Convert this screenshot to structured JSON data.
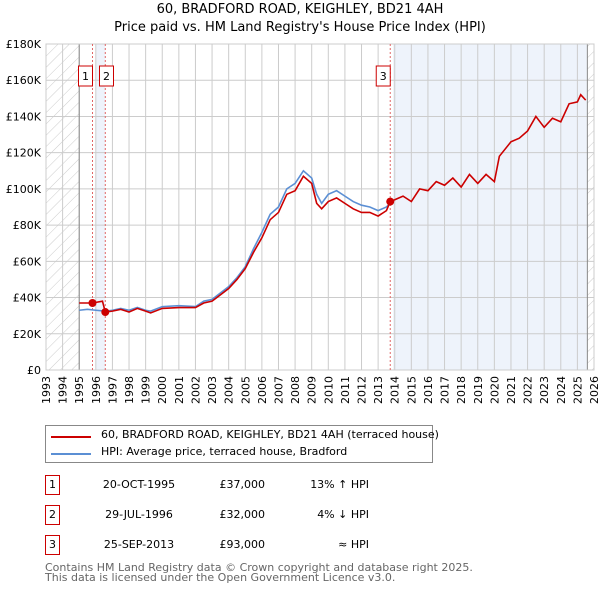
{
  "chart_data": {
    "type": "line",
    "title": "60, BRADFORD ROAD, KEIGHLEY, BD21 4AH",
    "subtitle": "Price paid vs. HM Land Registry's House Price Index (HPI)",
    "xlim": [
      1993,
      2026
    ],
    "ylim": [
      0,
      180000
    ],
    "x_ticks": [
      "1993",
      "1994",
      "1995",
      "1996",
      "1997",
      "1998",
      "1999",
      "2000",
      "2001",
      "2002",
      "2003",
      "2004",
      "2005",
      "2006",
      "2007",
      "2008",
      "2009",
      "2010",
      "2011",
      "2012",
      "2013",
      "2014",
      "2015",
      "2016",
      "2017",
      "2018",
      "2019",
      "2020",
      "2021",
      "2022",
      "2023",
      "2024",
      "2025",
      "2026"
    ],
    "y_ticks": [
      {
        "v": 0,
        "label": "£0"
      },
      {
        "v": 20000,
        "label": "£20K"
      },
      {
        "v": 40000,
        "label": "£40K"
      },
      {
        "v": 60000,
        "label": "£60K"
      },
      {
        "v": 80000,
        "label": "£80K"
      },
      {
        "v": 100000,
        "label": "£100K"
      },
      {
        "v": 120000,
        "label": "£120K"
      },
      {
        "v": 140000,
        "label": "£140K"
      },
      {
        "v": 160000,
        "label": "£160K"
      },
      {
        "v": 180000,
        "label": "£180K"
      }
    ],
    "grid": true,
    "hatched_ranges": [
      [
        1993,
        1995
      ],
      [
        2025.6,
        2026
      ]
    ],
    "shaded_ranges": [
      [
        1996.0,
        1996.57
      ],
      [
        2013.9,
        2025.6
      ]
    ],
    "series": [
      {
        "name": "HPI: Average price, terraced house, Bradford",
        "color": "#5b8fd4",
        "x": [
          1995,
          1995.5,
          1996,
          1996.6,
          1997,
          1997.5,
          1998,
          1998.5,
          1999,
          1999.3,
          2000,
          2001,
          2002,
          2002.5,
          2003,
          2003.5,
          2004,
          2004.5,
          2005,
          2005.5,
          2006,
          2006.5,
          2007,
          2007.5,
          2008,
          2008.5,
          2009,
          2009.3,
          2009.6,
          2010,
          2010.5,
          2011,
          2011.5,
          2012,
          2012.5,
          2013,
          2013.5,
          2013.73
        ],
        "y": [
          33000,
          33500,
          33000,
          32500,
          33000,
          34000,
          33000,
          34500,
          33000,
          32500,
          35000,
          35500,
          35000,
          38000,
          39000,
          42500,
          46000,
          51000,
          57000,
          67000,
          76000,
          86000,
          90000,
          100000,
          103000,
          110000,
          106000,
          97000,
          92000,
          97000,
          99000,
          96000,
          93000,
          91000,
          90000,
          88000,
          90000,
          92000
        ]
      },
      {
        "name": "60, BRADFORD ROAD, KEIGHLEY, BD21 4AH (terraced house)",
        "color": "#cc0000",
        "x": [
          1995,
          1995.8,
          1996.4,
          1996.57,
          1997,
          1997.5,
          1998,
          1998.5,
          1999,
          1999.3,
          2000,
          2001,
          2002,
          2002.5,
          2003,
          2003.5,
          2004,
          2004.5,
          2005,
          2005.5,
          2006,
          2006.5,
          2007,
          2007.5,
          2008,
          2008.5,
          2009,
          2009.3,
          2009.6,
          2010,
          2010.5,
          2011,
          2011.5,
          2012,
          2012.5,
          2013,
          2013.5,
          2013.73,
          2014,
          2014.5,
          2015,
          2015.5,
          2016,
          2016.5,
          2017,
          2017.5,
          2018,
          2018.5,
          2019,
          2019.5,
          2020,
          2020.3,
          2021,
          2021.5,
          2022,
          2022.5,
          2023,
          2023.5,
          2024,
          2024.5,
          2025,
          2025.2,
          2025.5
        ],
        "y": [
          37000,
          37000,
          38000,
          32000,
          32500,
          33500,
          32000,
          34000,
          32500,
          31500,
          34000,
          34500,
          34500,
          37000,
          38000,
          41500,
          45000,
          50000,
          56000,
          65000,
          73000,
          83000,
          87000,
          97000,
          99000,
          107000,
          103000,
          92000,
          89000,
          93000,
          95000,
          92000,
          89000,
          87000,
          87000,
          85000,
          88000,
          93000,
          94000,
          96000,
          93000,
          100000,
          99000,
          104000,
          102000,
          106000,
          101000,
          108000,
          103000,
          108000,
          104000,
          118000,
          126000,
          128000,
          132000,
          140000,
          134000,
          139000,
          137000,
          147000,
          148000,
          152000,
          149000
        ]
      }
    ],
    "sales": [
      {
        "num": "1",
        "x": 1995.8,
        "y": 37000,
        "date": "20-OCT-1995",
        "price": "£37,000",
        "rel": "13% ↑ HPI"
      },
      {
        "num": "2",
        "x": 1996.57,
        "y": 32000,
        "date": "29-JUL-1996",
        "price": "£32,000",
        "rel": "4% ↓ HPI"
      },
      {
        "num": "3",
        "x": 2013.73,
        "y": 93000,
        "date": "25-SEP-2013",
        "price": "£93,000",
        "rel": "≈ HPI"
      }
    ]
  },
  "footer": {
    "line1": "Contains HM Land Registry data © Crown copyright and database right 2025.",
    "line2": "This data is licensed under the Open Government Licence v3.0."
  }
}
